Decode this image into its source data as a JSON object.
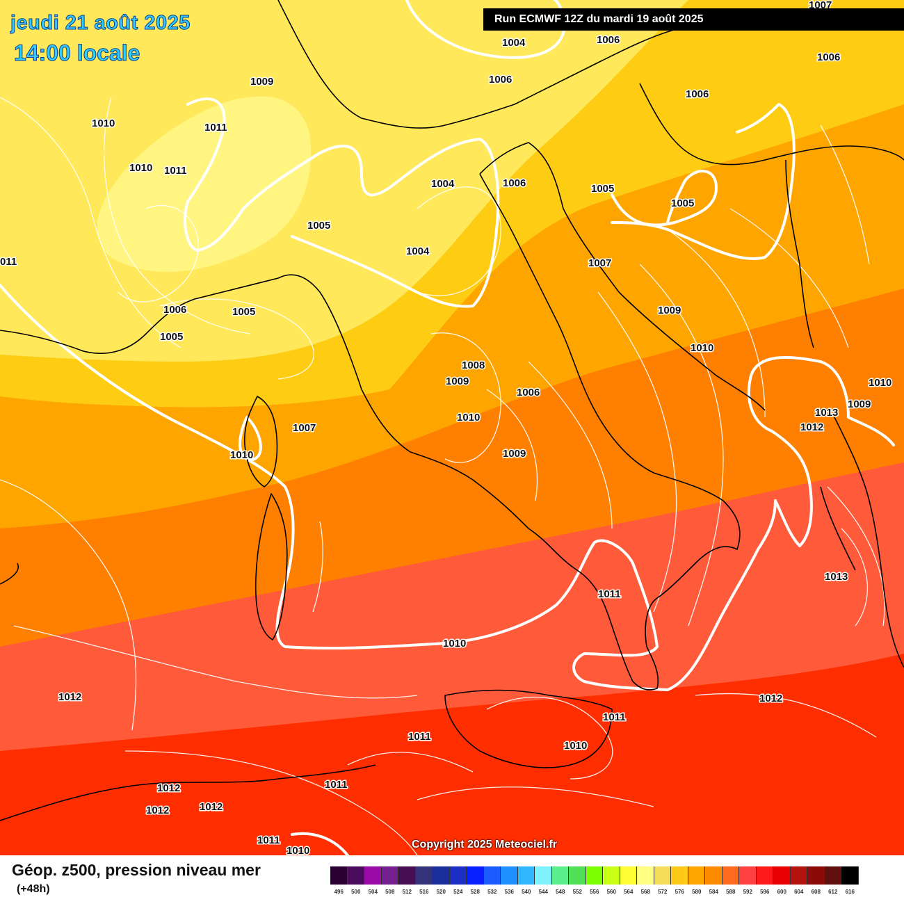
{
  "header": {
    "date": "jeudi 21 août 2025",
    "time": "14:00 locale",
    "run": "Run ECMWF 12Z du mardi 19 août 2025"
  },
  "copyright": "Copyright 2025 Meteociel.fr",
  "footer": {
    "title": "Géop. z500, pression niveau mer",
    "subtitle": "(+48h)"
  },
  "scale": {
    "ticks": [
      "496",
      "500",
      "504",
      "508",
      "512",
      "516",
      "520",
      "524",
      "528",
      "532",
      "536",
      "540",
      "544",
      "548",
      "552",
      "556",
      "560",
      "564",
      "568",
      "572",
      "576",
      "580",
      "584",
      "588",
      "592",
      "596",
      "600",
      "604",
      "608",
      "612",
      "616"
    ],
    "colors": [
      "#2a0033",
      "#4b0d5e",
      "#9a0aa8",
      "#731f8e",
      "#470f52",
      "#33337a",
      "#1a2f9c",
      "#1c2ec4",
      "#0a1fff",
      "#1a5cff",
      "#1e90ff",
      "#30b8ff",
      "#7ff2ff",
      "#5cf08c",
      "#52e058",
      "#7cff00",
      "#c8ff14",
      "#ffff33",
      "#ffff80",
      "#f5dd5a",
      "#ffc91a",
      "#ffa500",
      "#ff8c00",
      "#ff6a1f",
      "#ff4040",
      "#ff1a1a",
      "#e60000",
      "#b3120f",
      "#8c0a0a",
      "#611010",
      "#000000"
    ]
  },
  "map": {
    "colors": {
      "z560": "#fff580",
      "z564": "#ffe85a",
      "z568": "#ffcc14",
      "z572": "#ffa500",
      "z576": "#ff8000",
      "z580": "#ff5a3a",
      "z584": "#ff2e00"
    },
    "labels": [
      {
        "id": "l1",
        "t": "1004"
      },
      {
        "id": "l2",
        "t": "1006"
      },
      {
        "id": "l3",
        "t": "1006"
      },
      {
        "id": "l4",
        "t": "1006"
      },
      {
        "id": "l5",
        "t": "1006"
      },
      {
        "id": "l6",
        "t": "1009"
      },
      {
        "id": "l7",
        "t": "1010"
      },
      {
        "id": "l8",
        "t": "1011"
      },
      {
        "id": "l9",
        "t": "1010"
      },
      {
        "id": "l10",
        "t": "1011"
      },
      {
        "id": "l11",
        "t": "1004"
      },
      {
        "id": "l12",
        "t": "1006"
      },
      {
        "id": "l13",
        "t": "1005"
      },
      {
        "id": "l14",
        "t": "1005"
      },
      {
        "id": "l15",
        "t": "1005"
      },
      {
        "id": "l16",
        "t": "1004"
      },
      {
        "id": "l17",
        "t": "1007"
      },
      {
        "id": "l18",
        "t": "011"
      },
      {
        "id": "l19",
        "t": "1006"
      },
      {
        "id": "l20",
        "t": "1005"
      },
      {
        "id": "l21",
        "t": "1005"
      },
      {
        "id": "l22",
        "t": "1009"
      },
      {
        "id": "l23",
        "t": "1010"
      },
      {
        "id": "l24",
        "t": "1008"
      },
      {
        "id": "l25",
        "t": "1009"
      },
      {
        "id": "l26",
        "t": "1006"
      },
      {
        "id": "l27",
        "t": "1010"
      },
      {
        "id": "l28",
        "t": "1010"
      },
      {
        "id": "l29",
        "t": "1009"
      },
      {
        "id": "l30",
        "t": "1007"
      },
      {
        "id": "l31",
        "t": "1010"
      },
      {
        "id": "l32",
        "t": "1009"
      },
      {
        "id": "l33",
        "t": "1013"
      },
      {
        "id": "l34",
        "t": "1012"
      },
      {
        "id": "l35",
        "t": "1013"
      },
      {
        "id": "l36",
        "t": "1011"
      },
      {
        "id": "l37",
        "t": "1010"
      },
      {
        "id": "l38",
        "t": "1012"
      },
      {
        "id": "l39",
        "t": "1012"
      },
      {
        "id": "l40",
        "t": "1011"
      },
      {
        "id": "l41",
        "t": "1011"
      },
      {
        "id": "l42",
        "t": "1010"
      },
      {
        "id": "l43",
        "t": "1012"
      },
      {
        "id": "l44",
        "t": "1012"
      },
      {
        "id": "l45",
        "t": "1012"
      },
      {
        "id": "l46",
        "t": "1011"
      },
      {
        "id": "l47",
        "t": "1011"
      },
      {
        "id": "l48",
        "t": "1010"
      },
      {
        "id": "l49",
        "t": "1007"
      }
    ]
  }
}
